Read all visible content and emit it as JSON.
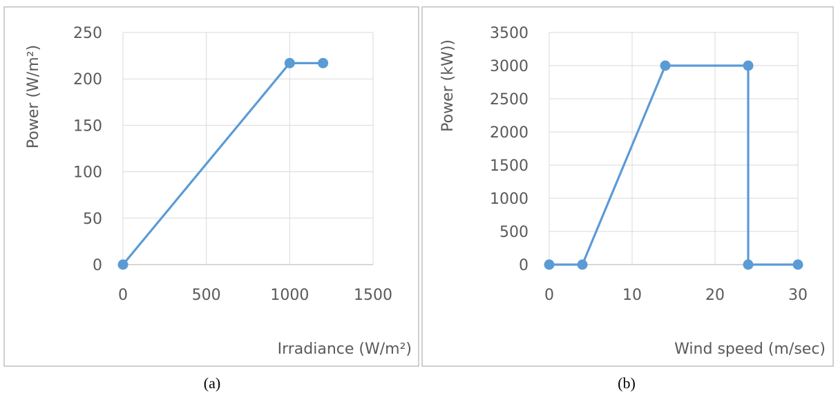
{
  "chart_data": [
    {
      "type": "line",
      "panel_label": "(a)",
      "xlabel": "Irradiance (W/m²)",
      "ylabel": "Power (W/m²)",
      "xlim": [
        0,
        1500
      ],
      "ylim": [
        0,
        250
      ],
      "xticks": [
        "0",
        "500",
        "1000",
        "1500"
      ],
      "yticks": [
        "0",
        "50",
        "100",
        "150",
        "200",
        "250"
      ],
      "grid": true,
      "color": "#5b9bd5",
      "x": [
        0,
        1000,
        1200
      ],
      "y": [
        0,
        217,
        217
      ]
    },
    {
      "type": "line",
      "panel_label": "(b)",
      "xlabel": "Wind speed (m/sec)",
      "ylabel": "Power (kW))",
      "xlim": [
        0,
        30
      ],
      "ylim": [
        0,
        3500
      ],
      "xticks": [
        "0",
        "10",
        "20",
        "30"
      ],
      "yticks": [
        "0",
        "500",
        "1000",
        "1500",
        "2000",
        "2500",
        "3000",
        "3500"
      ],
      "grid": true,
      "color": "#5b9bd5",
      "x": [
        0,
        4,
        14,
        24,
        24,
        30
      ],
      "y": [
        0,
        0,
        3000,
        3000,
        0,
        0
      ]
    }
  ]
}
